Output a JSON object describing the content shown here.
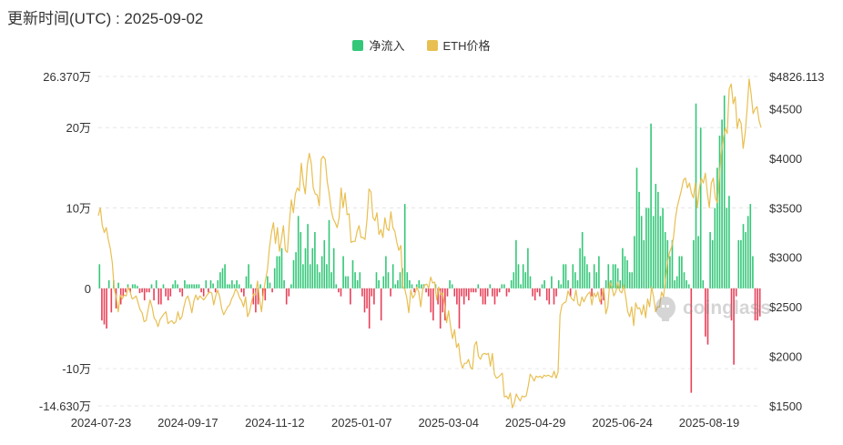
{
  "header": {
    "update_time": "更新时间(UTC) : 2025-09-02"
  },
  "watermark": {
    "text": "coinglass"
  },
  "colors": {
    "inflow": "#35c779",
    "outflow": "#e8425a",
    "price": "#e8bf52",
    "grid": "#e6e6e6"
  },
  "chart_data": {
    "type": "bar+line",
    "legend": [
      "净流入",
      "ETH价格"
    ],
    "left_axis": {
      "ticks": [
        26.37,
        20,
        10,
        0,
        -10,
        -14.63
      ],
      "tick_labels": [
        "26.370万",
        "20万",
        "10万",
        "0",
        "-10万",
        "-14.630万"
      ],
      "range": [
        -14.63,
        26.37
      ]
    },
    "right_axis": {
      "ticks": [
        4826.113,
        4500,
        4000,
        3500,
        3000,
        2500,
        2000,
        1500
      ],
      "tick_labels": [
        "$4826.113",
        "$4500",
        "$4000",
        "$3500",
        "$3000",
        "$2500",
        "$2000",
        "$1500"
      ],
      "range": [
        1500,
        4826.113
      ]
    },
    "x_tick_labels": [
      "2024-07-23",
      "2024-09-17",
      "2024-11-12",
      "2025-01-07",
      "2025-03-04",
      "2025-04-29",
      "2025-06-24",
      "2025-08-19"
    ],
    "series": [
      {
        "name": "净流入",
        "kind": "bar",
        "axis": "left",
        "unit": "万",
        "values": [
          3,
          -4,
          -4.5,
          -5,
          1,
          -3,
          1,
          -2.5,
          0.7,
          -2,
          -1,
          -0.5,
          0.5,
          -0.5,
          0.5,
          0.5,
          0.3,
          -0.6,
          -0.5,
          -1.5,
          -0.5,
          -0.5,
          0.5,
          -1.5,
          1,
          -2,
          -2,
          0.5,
          -1,
          -1.5,
          -1,
          0.5,
          1,
          0.5,
          -0.5,
          -1,
          1,
          0.5,
          0.5,
          0.5,
          0.5,
          0.5,
          0.5,
          -0.5,
          -1,
          1,
          -0.5,
          1,
          0.6,
          -0.5,
          1,
          2,
          2.5,
          3,
          0.5,
          0.5,
          1,
          0.5,
          1,
          0.5,
          -0.5,
          -1,
          1.5,
          3,
          0.5,
          -2,
          -3,
          -2,
          0.5,
          -1,
          -1.5,
          1.5,
          0.7,
          -0.5,
          2.5,
          4,
          4,
          5,
          1,
          -2,
          -1,
          0.5,
          3.5,
          4.5,
          9,
          7,
          3,
          5,
          8,
          3,
          5,
          7,
          3,
          2,
          4,
          6,
          3,
          8.5,
          2,
          5,
          0.5,
          -0.5,
          -1,
          4,
          1.5,
          1.5,
          -2,
          3.5,
          2,
          1,
          2,
          -1,
          -3,
          -2.5,
          -5,
          -1,
          -2,
          2,
          1,
          -4,
          1.5,
          4,
          2,
          -1,
          3,
          0.5,
          1,
          2,
          2.5,
          10.5,
          2,
          1,
          0.5,
          -0.5,
          0.5,
          1,
          0.5,
          0.5,
          -0.5,
          -1,
          -3,
          -4,
          0.5,
          -2,
          -5,
          -3,
          -4,
          -1,
          1,
          0.5,
          -1,
          -2,
          -5,
          -1,
          -2,
          -1,
          -1.5,
          -0.5,
          -0.5,
          -0.5,
          0.5,
          -1,
          -2,
          -2,
          -1,
          0.5,
          -1,
          -2,
          -1,
          -0.5,
          0.5,
          0.5,
          -1,
          -0.5,
          1,
          2,
          6,
          3,
          0.5,
          3,
          2,
          5,
          1.5,
          -1,
          -1.5,
          -0.5,
          -1,
          0.5,
          1,
          -1.5,
          -2,
          1.5,
          -2,
          -1,
          1,
          0.5,
          3,
          3,
          1,
          -1,
          3,
          2,
          1,
          5,
          7,
          4,
          3,
          2,
          -1,
          3,
          2,
          4,
          -2,
          -1.5,
          1,
          3,
          1,
          3,
          3,
          2.5,
          1,
          5,
          4,
          3.5,
          2,
          2,
          6.5,
          15,
          12,
          9,
          6,
          10,
          10,
          20.5,
          9,
          13,
          12,
          9,
          10,
          7,
          6,
          4,
          6,
          1,
          1.5,
          4,
          4,
          2,
          1,
          0.5,
          -13,
          6,
          23,
          6.5,
          20,
          1,
          -6,
          -7,
          7,
          6,
          10,
          15,
          19,
          21,
          24,
          10,
          11.5,
          -4,
          -9.5,
          -1,
          6,
          6,
          8,
          7,
          9,
          10.5,
          4,
          -4,
          -4,
          -3.5
        ]
      },
      {
        "name": "ETH价格",
        "kind": "line",
        "axis": "right",
        "unit": "USD",
        "values": [
          3420,
          3500,
          3320,
          3250,
          3300,
          3180,
          3090,
          2950,
          2680,
          2600,
          2450,
          2620,
          2580,
          2620,
          2610,
          2700,
          2650,
          2580,
          2590,
          2610,
          2540,
          2470,
          2440,
          2350,
          2360,
          2470,
          2570,
          2500,
          2390,
          2360,
          2300,
          2370,
          2400,
          2430,
          2450,
          2330,
          2350,
          2360,
          2330,
          2350,
          2450,
          2370,
          2400,
          2500,
          2580,
          2610,
          2540,
          2440,
          2560,
          2620,
          2570,
          2610,
          2590,
          2570,
          2600,
          2630,
          2650,
          2640,
          2520,
          2610,
          2670,
          2600,
          2480,
          2420,
          2460,
          2500,
          2520,
          2580,
          2620,
          2680,
          2650,
          2590,
          2560,
          2500,
          2600,
          2400,
          2450,
          2550,
          2630,
          2620,
          2760,
          2580,
          2450,
          2650,
          2770,
          2880,
          3100,
          3250,
          3350,
          3140,
          3300,
          3060,
          3180,
          3320,
          3070,
          3050,
          3350,
          3580,
          3450,
          3640,
          3700,
          3670,
          3950,
          3750,
          3640,
          3930,
          4050,
          3950,
          3700,
          3640,
          3630,
          3520,
          3990,
          4020,
          3990,
          3770,
          3640,
          3480,
          3390,
          3350,
          3300,
          3400,
          3700,
          3500,
          3650,
          3430,
          3440,
          3150,
          3160,
          3160,
          3260,
          3320,
          3200,
          3200,
          3180,
          3380,
          3690,
          3660,
          3400,
          3370,
          3450,
          3230,
          3280,
          3200,
          3400,
          3290,
          3270,
          3460,
          3300,
          3260,
          3150,
          3070,
          3120,
          2700,
          2680,
          2590,
          2440,
          2670,
          2590,
          2620,
          2700,
          2650,
          2500,
          2680,
          2720,
          2730,
          2690,
          2800,
          2740,
          2750,
          2570,
          2700,
          2620,
          2640,
          2520,
          2340,
          2460,
          2300,
          2180,
          2270,
          2090,
          2130,
          1950,
          1880,
          1930,
          1930,
          1970,
          1890,
          1870,
          2110,
          2150,
          2000,
          1970,
          2020,
          2030,
          2020,
          2030,
          1900,
          2030,
          1820,
          1780,
          1790,
          1810,
          1830,
          1590,
          1600,
          1570,
          1630,
          1480,
          1530,
          1620,
          1580,
          1550,
          1600,
          1590,
          1600,
          1700,
          1820,
          1790,
          1750,
          1800,
          1790,
          1800,
          1780,
          1810,
          1800,
          1810,
          1800,
          1790,
          1850,
          1780,
          1840,
          2420,
          2520,
          2540,
          2550,
          2660,
          2610,
          2580,
          2560,
          2670,
          2530,
          2510,
          2600,
          2550,
          2600,
          2630,
          2650,
          2520,
          2640,
          2600,
          2650,
          2550,
          2610,
          2690,
          2430,
          2500,
          2750,
          2700,
          2610,
          2650,
          2750,
          2660,
          2640,
          2720,
          2600,
          2450,
          2400,
          2500,
          2310,
          2540,
          2480,
          2490,
          2420,
          2520,
          2390,
          2580,
          2500,
          2700,
          2600,
          2450,
          2500,
          2500,
          2650,
          2600,
          2790,
          2950,
          3050,
          3100,
          3200,
          3400,
          3520,
          3600,
          3680,
          3780,
          3800,
          3700,
          3750,
          3650,
          3600,
          3750,
          3500,
          3700,
          3800,
          3750,
          3850,
          3650,
          3500,
          3750,
          3800,
          3600,
          3550,
          3800,
          4050,
          4200,
          4300,
          4250,
          4700,
          4750,
          4550,
          4620,
          4300,
          4400,
          4350,
          4100,
          4250,
          4500,
          4800,
          4650,
          4450,
          4500,
          4520,
          4380,
          4310
        ]
      }
    ],
    "grid": true
  }
}
